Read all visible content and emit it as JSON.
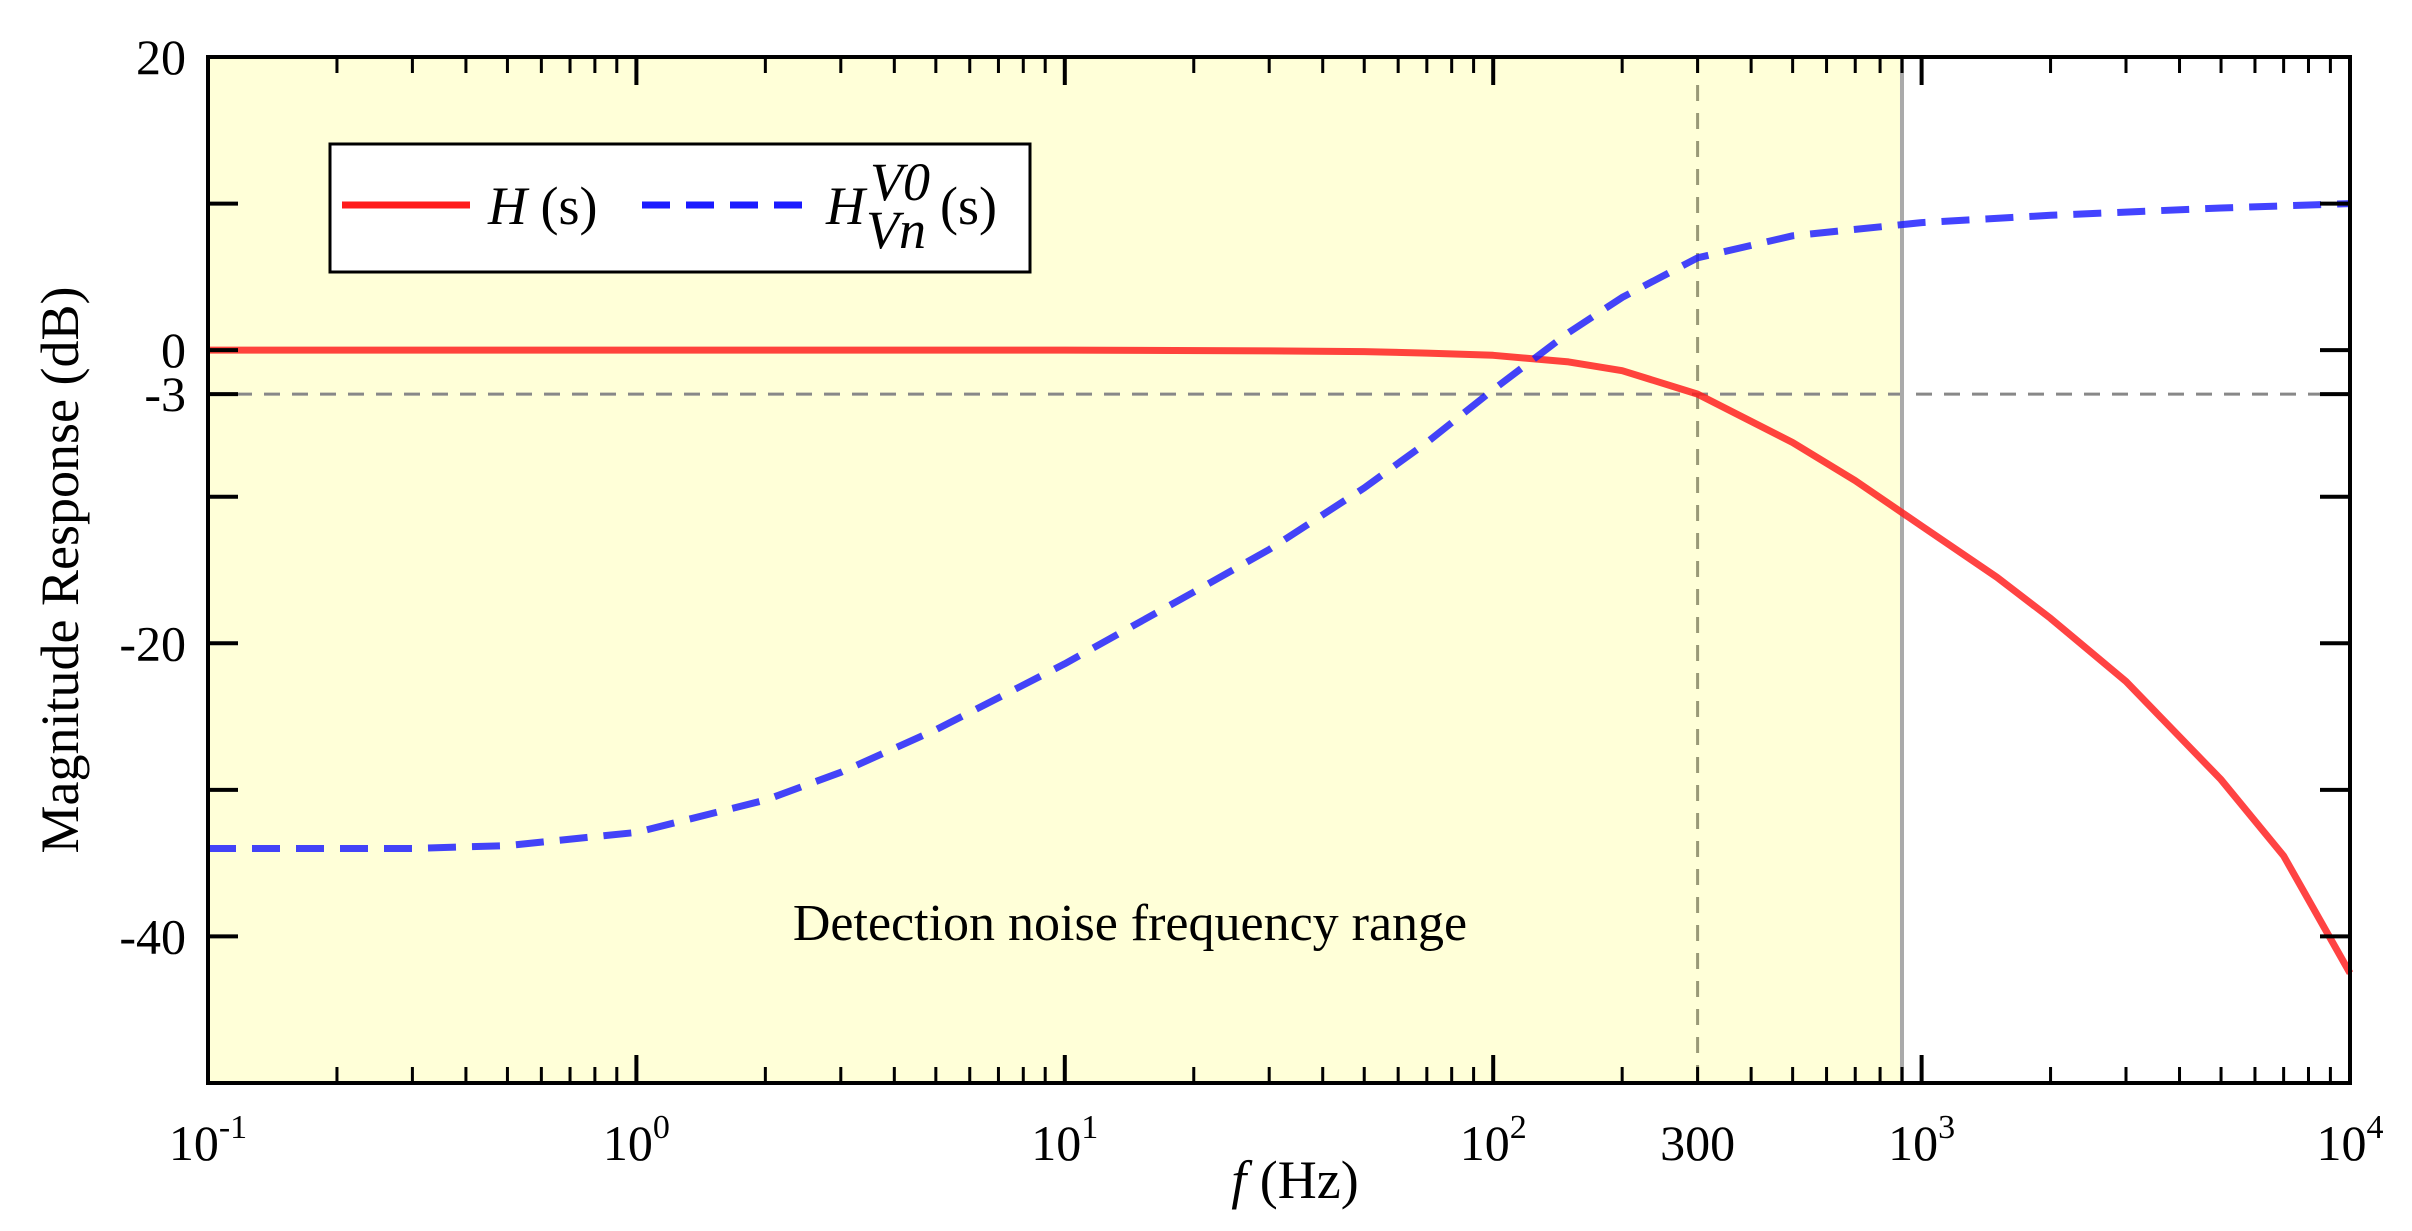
{
  "chart_data": {
    "type": "line",
    "title": "",
    "xlabel_italic": "f",
    "xlabel_unit": "(Hz)",
    "ylabel": "Magnitude Response (dB)",
    "xscale": "log",
    "xlim": [
      0.1,
      10000
    ],
    "ylim": [
      -50,
      20
    ],
    "x_ticks": [
      {
        "value": 0.1,
        "base": "10",
        "exp": "-1"
      },
      {
        "value": 1,
        "base": "10",
        "exp": "0"
      },
      {
        "value": 10,
        "base": "10",
        "exp": "1"
      },
      {
        "value": 100,
        "base": "10",
        "exp": "2"
      },
      {
        "value": 300,
        "base": "300",
        "exp": ""
      },
      {
        "value": 1000,
        "base": "10",
        "exp": "3"
      },
      {
        "value": 10000,
        "base": "10",
        "exp": "4"
      }
    ],
    "y_ticks": [
      {
        "value": 20,
        "label": "20"
      },
      {
        "value": 0,
        "label": "0"
      },
      {
        "value": -3,
        "label": "-3"
      },
      {
        "value": -20,
        "label": "-20"
      },
      {
        "value": -40,
        "label": "-40"
      }
    ],
    "y_minor_ticks": [
      10,
      -10,
      -30
    ],
    "series": [
      {
        "name": "H (s)",
        "color": "#ff1a1a",
        "style": "solid",
        "x": [
          0.1,
          1,
          10,
          30,
          50,
          70,
          100,
          150,
          200,
          300,
          500,
          700,
          1000,
          1500,
          2000,
          3000,
          5000,
          7000,
          10000
        ],
        "y": [
          0,
          0,
          0,
          -0.05,
          -0.1,
          -0.2,
          -0.35,
          -0.8,
          -1.4,
          -3,
          -6.3,
          -8.9,
          -12,
          -15.5,
          -18.3,
          -22.6,
          -29.3,
          -34.5,
          -42.5
        ]
      },
      {
        "name": "H_Vn^V0 (s)",
        "color": "#1a1aff",
        "style": "dashed",
        "x": [
          0.1,
          0.3,
          0.5,
          1,
          2,
          3,
          5,
          10,
          20,
          30,
          50,
          70,
          100,
          150,
          200,
          300,
          500,
          1000,
          2000,
          5000,
          10000
        ],
        "y": [
          -34,
          -34,
          -33.8,
          -32.9,
          -30.7,
          -28.8,
          -25.9,
          -21.4,
          -16.5,
          -13.6,
          -9.4,
          -6.3,
          -2.7,
          1.2,
          3.6,
          6.3,
          7.8,
          8.7,
          9.2,
          9.7,
          10
        ]
      }
    ],
    "legend": {
      "position": "top-left",
      "entries": [
        {
          "series": "H (s)",
          "main": "H",
          "sup": "",
          "sub": "",
          "suffix": "(s)"
        },
        {
          "series": "H_Vn^V0 (s)",
          "main": "H",
          "sup": "V0",
          "sub": "Vn",
          "suffix": "(s)"
        }
      ]
    },
    "reference_lines": [
      {
        "orientation": "horizontal",
        "value": -3,
        "style": "dashed",
        "color": "#888888"
      },
      {
        "orientation": "vertical",
        "value": 300,
        "style": "dashed",
        "color": "#999977"
      },
      {
        "orientation": "vertical",
        "value": 900,
        "style": "solid",
        "color": "#aaaaaa"
      }
    ],
    "shaded_region": {
      "x_range": [
        0.1,
        900
      ],
      "color": "#ffffd8",
      "label": "Detection noise frequency range"
    }
  }
}
